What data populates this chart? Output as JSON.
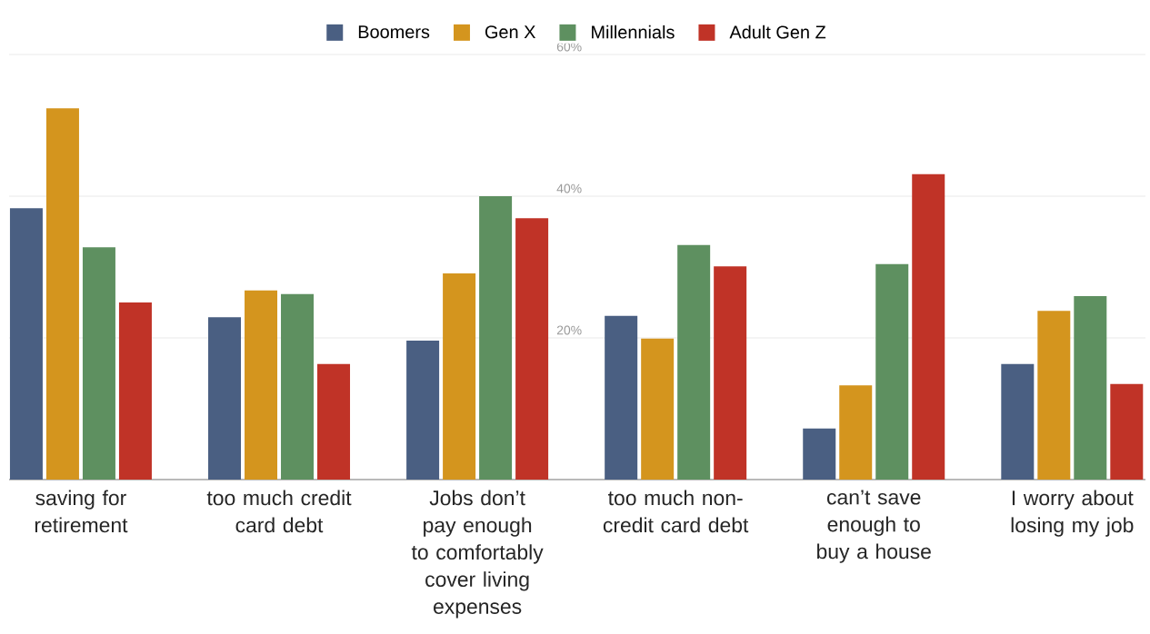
{
  "chart_data": {
    "type": "bar",
    "categories": [
      "saving for retirement",
      "too much credit card debt",
      "Jobs don’t pay enough to comfortably cover living expenses",
      "too much non-credit card debt",
      "can’t save enough to buy a house",
      "I worry about losing my job"
    ],
    "series": [
      {
        "name": "Boomers",
        "color": "#4a5f82",
        "values": [
          38.3,
          22.9,
          19.6,
          23.1,
          7.2,
          16.3
        ]
      },
      {
        "name": "Gen X",
        "color": "#d4951e",
        "values": [
          52.4,
          26.7,
          29.1,
          19.9,
          13.3,
          23.8
        ]
      },
      {
        "name": "Millennials",
        "color": "#5e9060",
        "values": [
          32.8,
          26.2,
          40.0,
          33.1,
          30.4,
          25.9
        ]
      },
      {
        "name": "Adult Gen Z",
        "color": "#c03327",
        "values": [
          25.0,
          16.3,
          36.9,
          30.1,
          43.1,
          13.5
        ]
      }
    ],
    "ylim": [
      0,
      60
    ],
    "yticks": [
      {
        "value": 20,
        "label": "20%"
      },
      {
        "value": 40,
        "label": "40%"
      },
      {
        "value": 60,
        "label": "60%"
      }
    ],
    "grid": "y",
    "legend": "top"
  }
}
